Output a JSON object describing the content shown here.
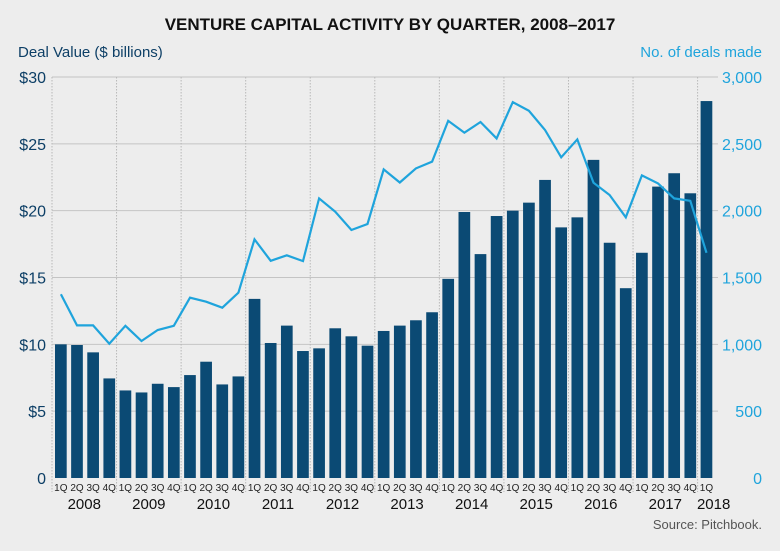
{
  "chart_data": {
    "type": "bar",
    "title": "VENTURE CAPITAL ACTIVITY BY QUARTER, 2008–2017",
    "ylabel": "Deal Value ($ billions)",
    "y2label": "No. of deals made",
    "ylim": [
      0,
      30
    ],
    "y2lim": [
      0,
      3000
    ],
    "yticks": [
      "0",
      "$5",
      "$10",
      "$15",
      "$20",
      "$25",
      "$30"
    ],
    "ytick_values": [
      0,
      5,
      10,
      15,
      20,
      25,
      30
    ],
    "y2ticks": [
      "0",
      "500",
      "1,000",
      "1,500",
      "2,000",
      "2,500",
      "3,000"
    ],
    "y2tick_values": [
      0,
      500,
      1000,
      1500,
      2000,
      2500,
      3000
    ],
    "grid": true,
    "quarters": [
      "1Q",
      "2Q",
      "3Q",
      "4Q",
      "1Q",
      "2Q",
      "3Q",
      "4Q",
      "1Q",
      "2Q",
      "3Q",
      "4Q",
      "1Q",
      "2Q",
      "3Q",
      "4Q",
      "1Q",
      "2Q",
      "3Q",
      "4Q",
      "1Q",
      "2Q",
      "3Q",
      "4Q",
      "1Q",
      "2Q",
      "3Q",
      "4Q",
      "1Q",
      "2Q",
      "3Q",
      "4Q",
      "1Q",
      "2Q",
      "3Q",
      "4Q",
      "1Q",
      "2Q",
      "3Q",
      "4Q",
      "1Q"
    ],
    "years": [
      "2008",
      "2009",
      "2010",
      "2011",
      "2012",
      "2013",
      "2014",
      "2015",
      "2016",
      "2017",
      "2018"
    ],
    "series": [
      {
        "name": "Deal Value ($ billions)",
        "type": "bar",
        "axis": "left",
        "color": "#0b4a74",
        "values": [
          10.0,
          9.95,
          9.4,
          7.45,
          6.55,
          6.4,
          7.05,
          6.8,
          7.7,
          8.7,
          7.0,
          7.6,
          13.4,
          10.1,
          11.4,
          9.5,
          9.7,
          11.2,
          10.6,
          9.9,
          11.0,
          11.4,
          11.8,
          12.4,
          14.9,
          19.9,
          16.75,
          19.6,
          20.0,
          20.6,
          22.3,
          18.75,
          19.5,
          23.8,
          17.6,
          14.2,
          16.85,
          21.8,
          22.8,
          21.3,
          28.2
        ]
      },
      {
        "name": "No. of deals made",
        "type": "line",
        "axis": "right",
        "color": "#1fa4dc",
        "values": [
          1374,
          1142,
          1142,
          1005,
          1139,
          1025,
          1107,
          1139,
          1349,
          1319,
          1274,
          1386,
          1785,
          1625,
          1666,
          1623,
          2092,
          1992,
          1855,
          1900,
          2309,
          2211,
          2316,
          2366,
          2672,
          2583,
          2663,
          2541,
          2812,
          2747,
          2603,
          2399,
          2533,
          2209,
          2117,
          1950,
          2264,
          2204,
          2092,
          2074,
          1685
        ]
      }
    ],
    "source": "Source: Pitchbook."
  }
}
